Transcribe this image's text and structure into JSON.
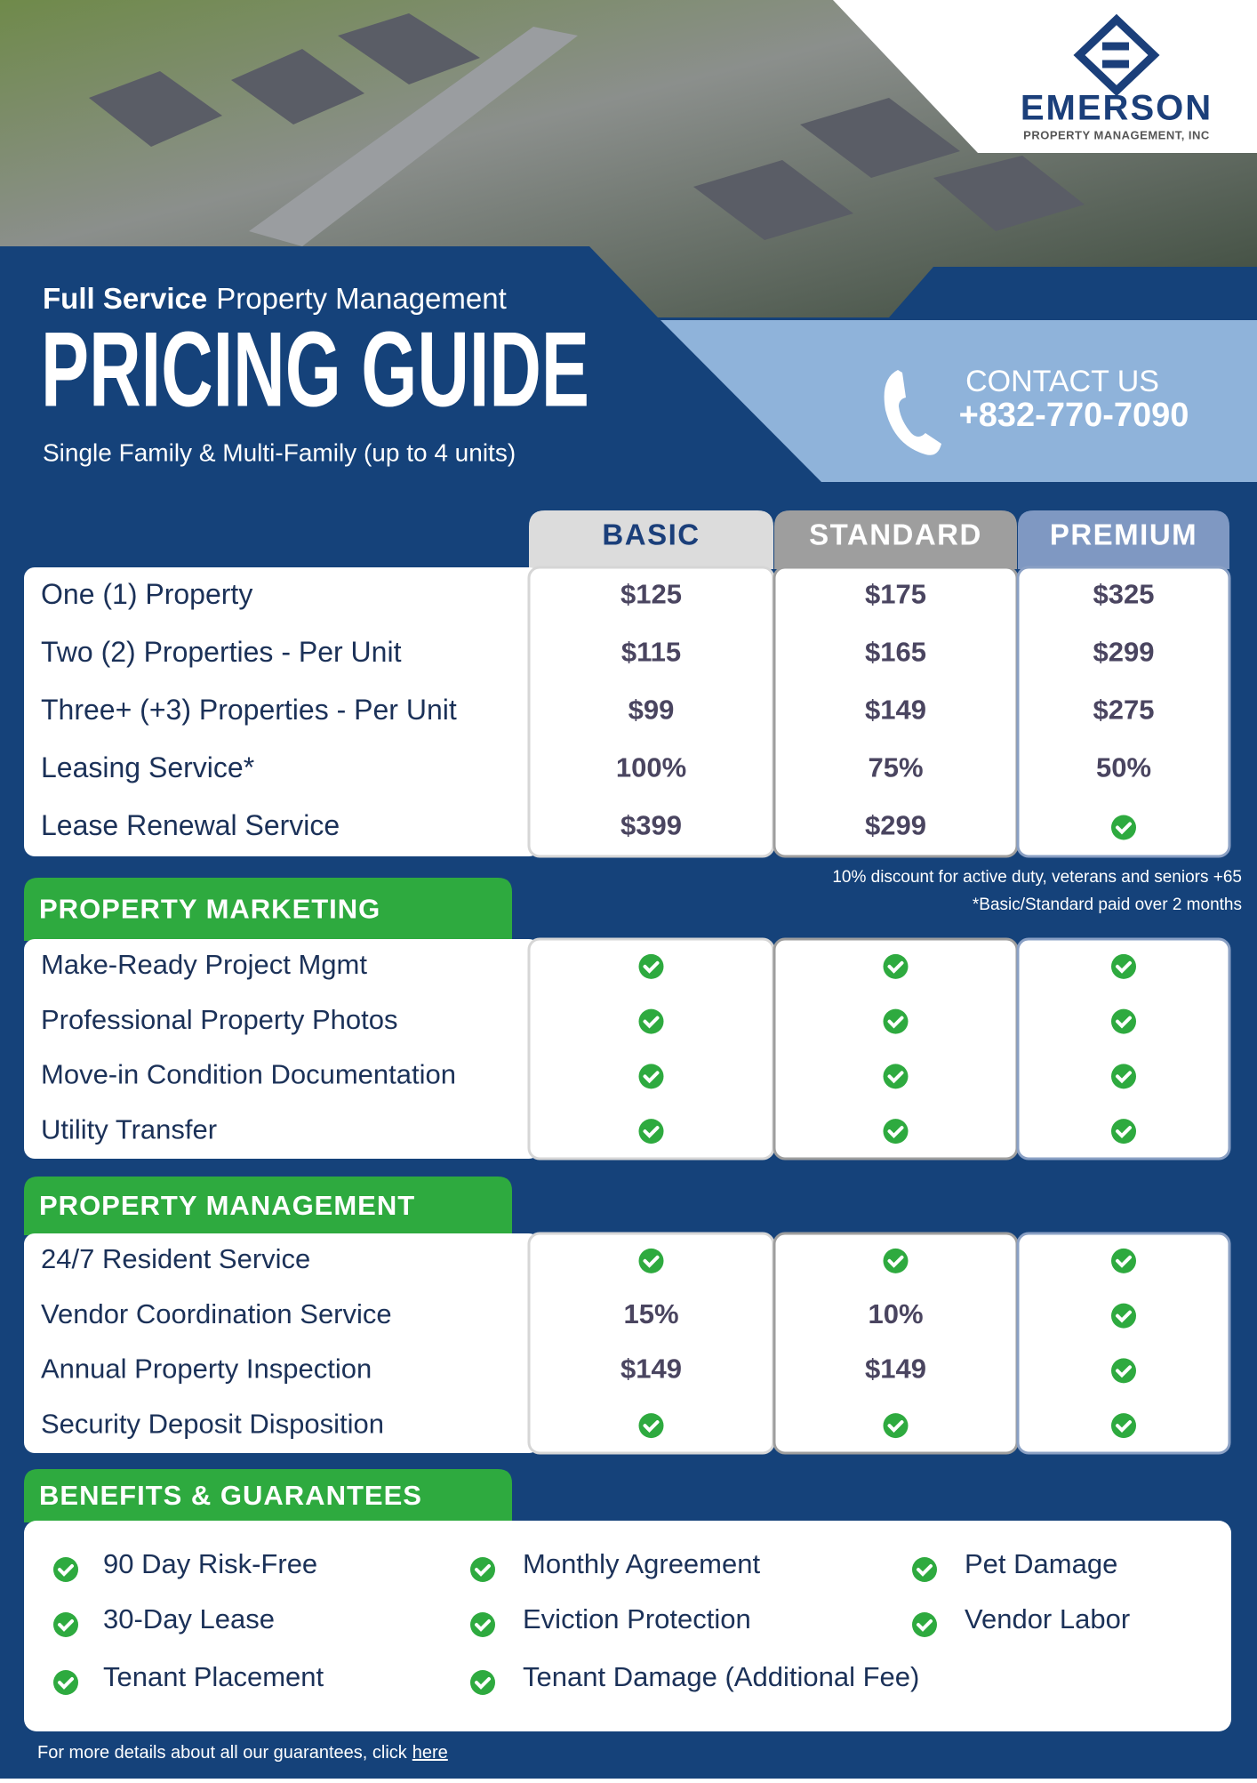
{
  "brand": {
    "name": "EMERSON",
    "tagline": "PROPERTY MANAGEMENT, INC"
  },
  "header": {
    "title_bold": "Full Service",
    "title_rest": "Property Management",
    "headline": "PRICING GUIDE",
    "subtitle": "Single Family & Multi-Family (up to 4 units)"
  },
  "contact": {
    "label": "CONTACT US",
    "phone": "+832-770-7090"
  },
  "plans": [
    "BASIC",
    "STANDARD",
    "PREMIUM"
  ],
  "pricing": {
    "rows": [
      {
        "label": "One (1) Property",
        "cells": [
          "$125",
          "$175",
          "$325"
        ]
      },
      {
        "label": "Two (2) Properties - Per Unit",
        "cells": [
          "$115",
          "$165",
          "$299"
        ]
      },
      {
        "label": "Three+ (+3) Properties - Per Unit",
        "cells": [
          "$99",
          "$149",
          "$275"
        ]
      },
      {
        "label": "Leasing Service*",
        "cells": [
          "100%",
          "75%",
          "50%"
        ]
      },
      {
        "label": "Lease Renewal Service",
        "cells": [
          "$399",
          "$299",
          null
        ]
      }
    ]
  },
  "notes": [
    "10% discount for active duty, veterans and seniors +65",
    "*Basic/Standard paid over 2 months"
  ],
  "marketing": {
    "title": "PROPERTY MARKETING",
    "rows": [
      {
        "label": "Make-Ready Project Mgmt",
        "cells": [
          null,
          null,
          null
        ]
      },
      {
        "label": "Professional Property Photos",
        "cells": [
          null,
          null,
          null
        ]
      },
      {
        "label": "Move-in Condition Documentation",
        "cells": [
          null,
          null,
          null
        ]
      },
      {
        "label": "Utility Transfer",
        "cells": [
          null,
          null,
          null
        ]
      }
    ]
  },
  "management": {
    "title": "PROPERTY MANAGEMENT",
    "rows": [
      {
        "label": "24/7 Resident Service",
        "cells": [
          null,
          null,
          null
        ]
      },
      {
        "label": "Vendor Coordination Service",
        "cells": [
          "15%",
          "10%",
          null
        ]
      },
      {
        "label": "Annual Property Inspection",
        "cells": [
          "$149",
          "$149",
          null
        ]
      },
      {
        "label": "Security Deposit Disposition",
        "cells": [
          null,
          null,
          null
        ]
      }
    ]
  },
  "benefits": {
    "title": "BENEFITS & GUARANTEES",
    "items": [
      [
        "90 Day Risk-Free",
        "30-Day Lease",
        "Tenant Placement"
      ],
      [
        "Monthly Agreement",
        "Eviction Protection",
        "Tenant Damage (Additional Fee)"
      ],
      [
        "Pet Damage",
        "Vendor Labor"
      ]
    ]
  },
  "footer": {
    "text": "For more details about all our guarantees, click",
    "link": "here"
  }
}
